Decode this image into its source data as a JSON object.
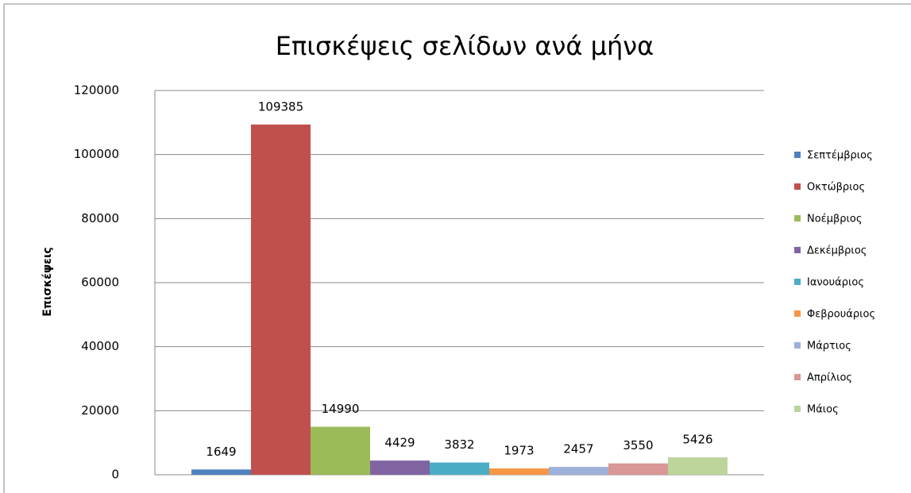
{
  "chart_data": {
    "type": "bar",
    "title": "Επισκέψεις σελίδων ανά μήνα",
    "y_label": "Επισκέψεις",
    "categories": [
      null
    ],
    "series": [
      {
        "name": "Σεπτέμβριος",
        "color": "#4f81bd",
        "values": [
          1649
        ]
      },
      {
        "name": "Οκτώβριος",
        "color": "#c0504d",
        "values": [
          109385
        ]
      },
      {
        "name": "Νοέμβριος",
        "color": "#9bbb59",
        "values": [
          14990
        ]
      },
      {
        "name": "Δεκέμβριος",
        "color": "#8064a2",
        "values": [
          4429
        ]
      },
      {
        "name": "Ιανουάριος",
        "color": "#4bacc6",
        "values": [
          3832
        ]
      },
      {
        "name": "Φεβρουάριος",
        "color": "#f79646",
        "values": [
          1973
        ]
      },
      {
        "name": "Μάρτιος",
        "color": "#9db0da",
        "values": [
          2457
        ]
      },
      {
        "name": "Απρίλιος",
        "color": "#d99795",
        "values": [
          3550
        ]
      },
      {
        "name": "Μάιος",
        "color": "#bdd49a",
        "values": [
          5426
        ]
      }
    ],
    "ylim": [
      0,
      120000
    ],
    "yticks": [
      0,
      20000,
      40000,
      60000,
      80000,
      100000,
      120000
    ],
    "grid": true,
    "legend": "right"
  }
}
